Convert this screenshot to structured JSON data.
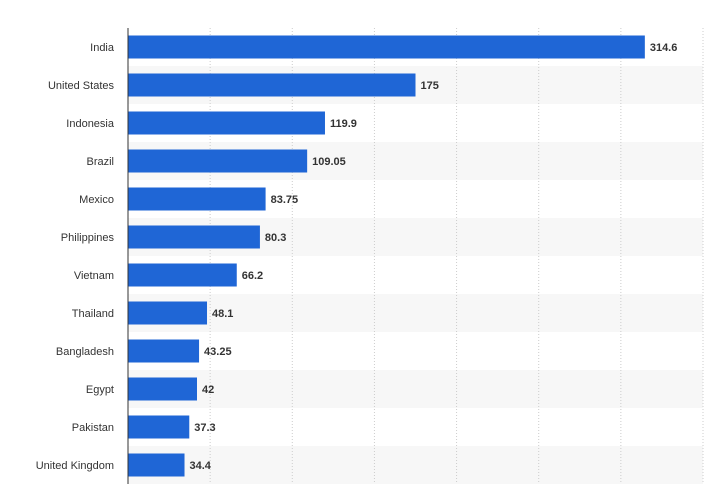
{
  "chart_data": {
    "type": "bar",
    "orientation": "horizontal",
    "title": "",
    "xlabel": "",
    "ylabel": "",
    "categories": [
      "India",
      "United States",
      "Indonesia",
      "Brazil",
      "Mexico",
      "Philippines",
      "Vietnam",
      "Thailand",
      "Bangladesh",
      "Egypt",
      "Pakistan",
      "United Kingdom"
    ],
    "values": [
      314.6,
      175,
      119.9,
      109.05,
      83.75,
      80.3,
      66.2,
      48.1,
      43.25,
      42,
      37.3,
      34.4
    ],
    "value_labels": [
      "314.6",
      "175",
      "119.9",
      "109.05",
      "83.75",
      "80.3",
      "66.2",
      "48.1",
      "43.25",
      "42",
      "37.3",
      "34.4"
    ],
    "xlim": [
      0,
      350
    ],
    "grid": true,
    "legend": "none",
    "bar_color": "#1f66d6",
    "alt_row_color": "#f7f7f7"
  }
}
